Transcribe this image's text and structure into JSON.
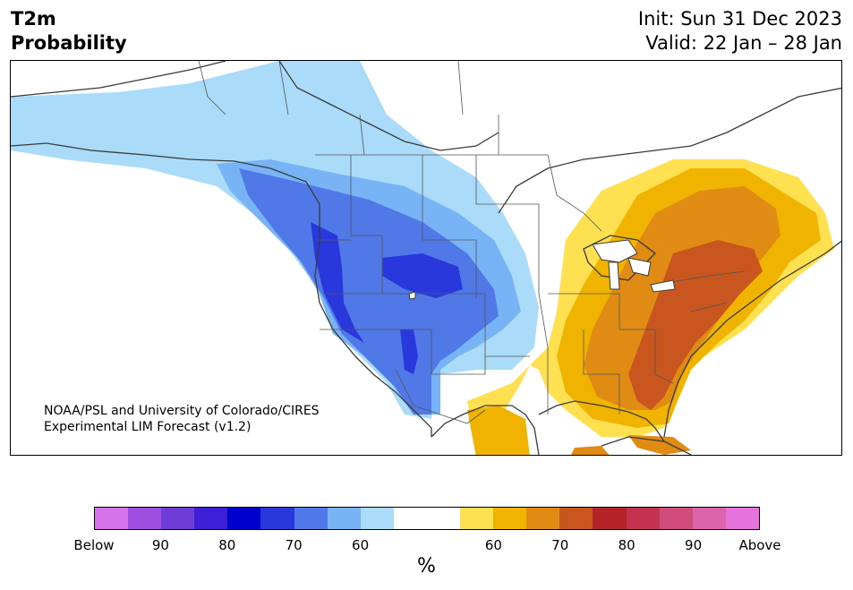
{
  "header": {
    "variable": "T2m",
    "product": "Probability",
    "init": "Init: Sun 31 Dec 2023",
    "valid": "Valid: 22 Jan – 28 Jan"
  },
  "credit": {
    "line1": "NOAA/PSL and University of Colorado/CIRES",
    "line2": "Experimental LIM Forecast (v1.2)"
  },
  "colorbar": {
    "colors": [
      "#d773ea",
      "#a050e0",
      "#6e3cd8",
      "#3c1ed6",
      "#0000cd",
      "#2838dc",
      "#5078e6",
      "#78b4f5",
      "#aadcfa",
      "#ffffff",
      "#ffffff",
      "#ffe050",
      "#f0b400",
      "#e08c14",
      "#c8561e",
      "#b42328",
      "#c43250",
      "#d04c7a",
      "#dc64aa",
      "#e673dc"
    ],
    "tick_labels": [
      "Below",
      "90",
      "80",
      "70",
      "60",
      "60",
      "70",
      "80",
      "90",
      "Above"
    ],
    "unit": "%"
  },
  "legend_colors": {
    "below_60": "#aadcfa",
    "below_70": "#78b4f5",
    "below_80": "#5078e6",
    "below_90": "#2838dc",
    "above_60": "#ffe050",
    "above_70": "#f0b400",
    "above_80": "#e08c14",
    "above_90": "#c8561e"
  }
}
